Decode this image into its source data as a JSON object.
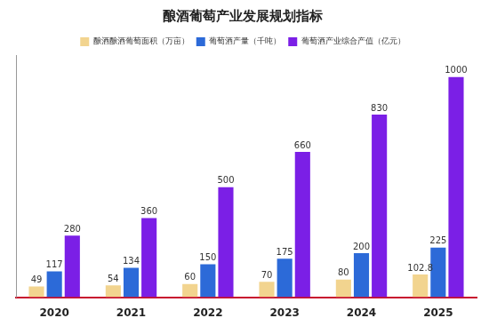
{
  "chart_data": {
    "type": "bar",
    "title": "酿酒葡萄产业发展规划指标",
    "categories": [
      "2020",
      "2021",
      "2022",
      "2023",
      "2024",
      "2025"
    ],
    "series": [
      {
        "name": "酿酒酿酒葡萄面积（万亩）",
        "color": "#f2d48f",
        "values": [
          49,
          54,
          60,
          70,
          80,
          102.8
        ]
      },
      {
        "name": "葡萄酒产量（千吨）",
        "color": "#2c6ad8",
        "values": [
          117,
          134,
          150,
          175,
          200,
          225
        ]
      },
      {
        "name": "葡萄酒产业综合产值（亿元）",
        "color": "#7b1fe6",
        "values": [
          280,
          360,
          500,
          660,
          830,
          1000
        ]
      }
    ],
    "ylim": [
      0,
      1100
    ],
    "grid": false,
    "legend": "top",
    "data_labels": true,
    "tick_labels": "x"
  }
}
